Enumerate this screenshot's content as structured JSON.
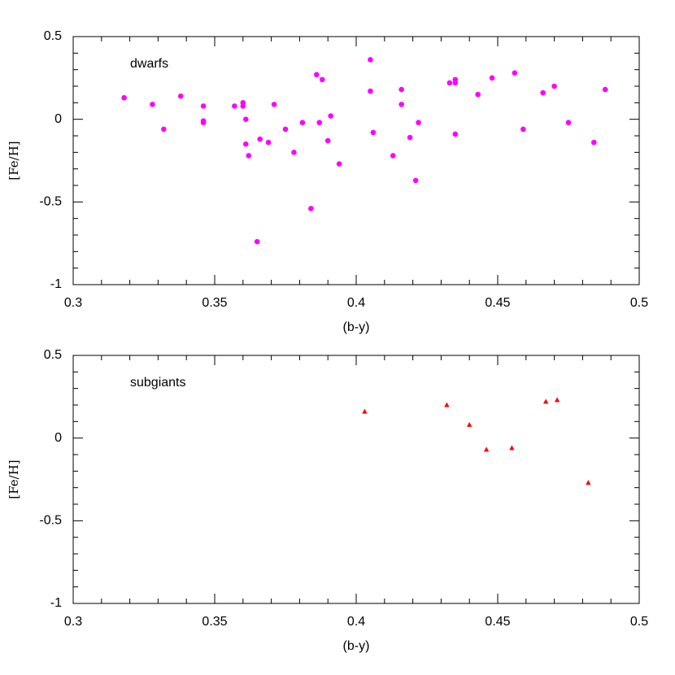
{
  "chart_data": [
    {
      "type": "scatter",
      "annotation": "dwarfs",
      "xlabel": "(b-y)",
      "ylabel": "[Fe/H]",
      "xlim": [
        0.3,
        0.5
      ],
      "ylim": [
        -1,
        0.5
      ],
      "xticks": [
        0.3,
        0.35,
        0.4,
        0.45,
        0.5
      ],
      "yticks": [
        -1,
        -0.5,
        0,
        0.5
      ],
      "xminorticks": [
        0.31,
        0.32,
        0.33,
        0.34,
        0.36,
        0.37,
        0.38,
        0.39,
        0.41,
        0.42,
        0.43,
        0.44,
        0.46,
        0.47,
        0.48,
        0.49
      ],
      "yminorticks": [
        -0.9,
        -0.8,
        -0.7,
        -0.6,
        -0.4,
        -0.3,
        -0.2,
        -0.1,
        0.1,
        0.2,
        0.3,
        0.4
      ],
      "series": [
        {
          "color": "#ff00ff",
          "marker": "circle",
          "x": [
            0.318,
            0.328,
            0.332,
            0.338,
            0.346,
            0.346,
            0.346,
            0.357,
            0.36,
            0.36,
            0.361,
            0.361,
            0.362,
            0.365,
            0.366,
            0.369,
            0.371,
            0.375,
            0.378,
            0.381,
            0.384,
            0.386,
            0.387,
            0.388,
            0.39,
            0.391,
            0.394,
            0.405,
            0.405,
            0.406,
            0.413,
            0.416,
            0.416,
            0.419,
            0.421,
            0.422,
            0.433,
            0.435,
            0.435,
            0.435,
            0.443,
            0.448,
            0.456,
            0.459,
            0.466,
            0.47,
            0.475,
            0.484,
            0.488
          ],
          "y": [
            0.13,
            0.09,
            -0.06,
            0.14,
            0.08,
            -0.01,
            -0.02,
            0.08,
            0.1,
            0.08,
            0.0,
            -0.15,
            -0.22,
            -0.74,
            -0.12,
            -0.14,
            0.09,
            -0.06,
            -0.2,
            -0.02,
            -0.54,
            0.27,
            -0.02,
            0.24,
            -0.13,
            0.02,
            -0.27,
            0.36,
            0.17,
            -0.08,
            -0.22,
            0.18,
            0.09,
            -0.11,
            -0.37,
            -0.02,
            0.22,
            0.24,
            0.22,
            -0.09,
            0.15,
            0.25,
            0.28,
            -0.06,
            0.16,
            0.2,
            -0.02,
            -0.14,
            0.18
          ]
        }
      ]
    },
    {
      "type": "scatter",
      "annotation": "subgiants",
      "xlabel": "(b-y)",
      "ylabel": "[Fe/H]",
      "xlim": [
        0.3,
        0.5
      ],
      "ylim": [
        -1,
        0.5
      ],
      "xticks": [
        0.3,
        0.35,
        0.4,
        0.45,
        0.5
      ],
      "yticks": [
        -1,
        -0.5,
        0,
        0.5
      ],
      "xminorticks": [
        0.31,
        0.32,
        0.33,
        0.34,
        0.36,
        0.37,
        0.38,
        0.39,
        0.41,
        0.42,
        0.43,
        0.44,
        0.46,
        0.47,
        0.48,
        0.49
      ],
      "yminorticks": [
        -0.9,
        -0.8,
        -0.7,
        -0.6,
        -0.4,
        -0.3,
        -0.2,
        -0.1,
        0.1,
        0.2,
        0.3,
        0.4
      ],
      "series": [
        {
          "color": "#ff0000",
          "marker": "triangle",
          "x": [
            0.403,
            0.432,
            0.44,
            0.446,
            0.455,
            0.467,
            0.471,
            0.482
          ],
          "y": [
            0.16,
            0.2,
            0.08,
            -0.07,
            -0.06,
            0.22,
            0.23,
            -0.27
          ]
        }
      ]
    }
  ]
}
